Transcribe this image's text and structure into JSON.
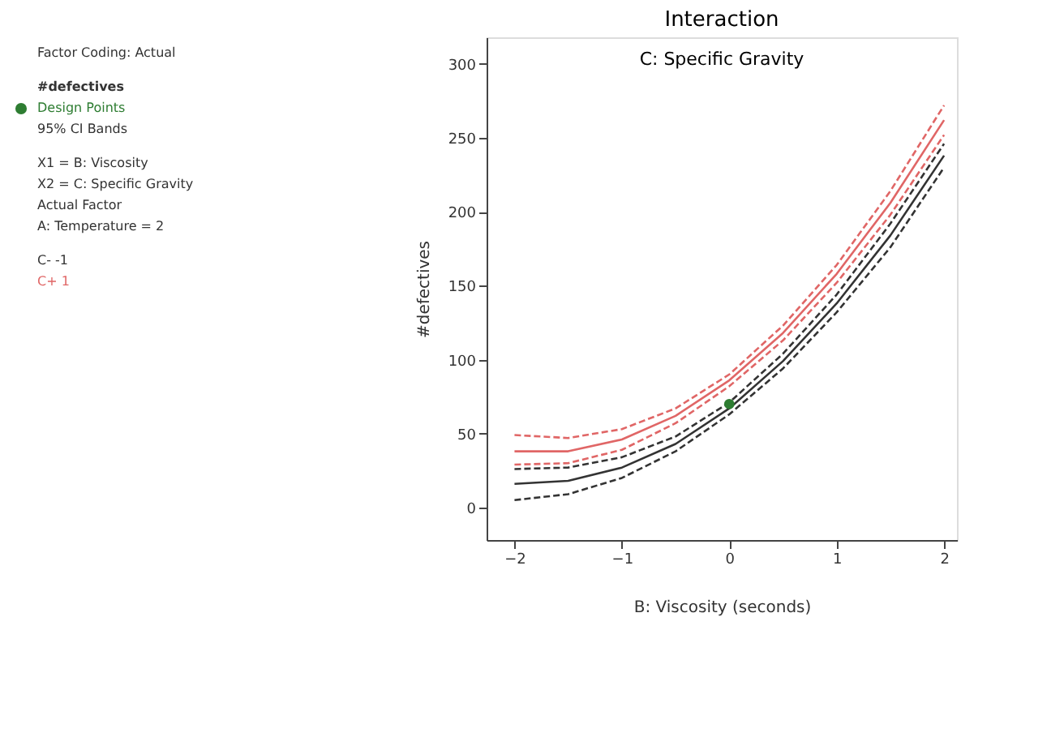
{
  "chart_data": {
    "type": "line",
    "title": "Interaction",
    "subtitle": "C: Specific Gravity",
    "xlabel": "B: Viscosity (seconds)",
    "ylabel": "#defectives",
    "legend_title": "#defectives",
    "legend": "left",
    "annotations": [
      "Factor Coding: Actual",
      "95% CI Bands",
      "X1 = B: Viscosity",
      "X2 = C: Specific Gravity",
      "Actual Factor",
      "A: Temperature = 2"
    ],
    "x": [
      -2,
      -1.5,
      -1,
      -0.5,
      0,
      0.5,
      1,
      1.5,
      2
    ],
    "series": [
      {
        "name": "C- -1",
        "color": "#333333",
        "values": [
          16,
          18,
          27,
          43,
          67,
          99,
          138,
          184,
          238
        ]
      },
      {
        "color": "#333333",
        "line_style": "dashed",
        "values": [
          5,
          9,
          20,
          38,
          63,
          94,
          132,
          176,
          230
        ]
      },
      {
        "color": "#333333",
        "line_style": "dashed",
        "values": [
          26,
          27,
          34,
          48,
          71,
          104,
          144,
          192,
          246
        ]
      },
      {
        "name": "C+ 1",
        "color": "#e06666",
        "values": [
          38,
          38,
          46,
          62,
          86,
          118,
          158,
          206,
          262
        ]
      },
      {
        "color": "#e06666",
        "line_style": "dashed",
        "values": [
          29,
          30,
          39,
          57,
          82,
          113,
          152,
          198,
          252
        ]
      },
      {
        "color": "#e06666",
        "line_style": "dashed",
        "values": [
          49,
          47,
          53,
          67,
          90,
          123,
          164,
          214,
          272
        ]
      },
      {
        "name": "Design Points",
        "type": "scatter",
        "color": "#2e7d32",
        "x": [
          0
        ],
        "values": [
          70
        ],
        "marker": "circle"
      }
    ],
    "xlim": [
      -2.26,
      2.12
    ],
    "xticks": [
      -2,
      -1,
      0,
      1,
      2
    ],
    "ylim": [
      -22,
      318
    ],
    "yticks": [
      0,
      50,
      100,
      150,
      200,
      250,
      300
    ],
    "grid": false
  }
}
